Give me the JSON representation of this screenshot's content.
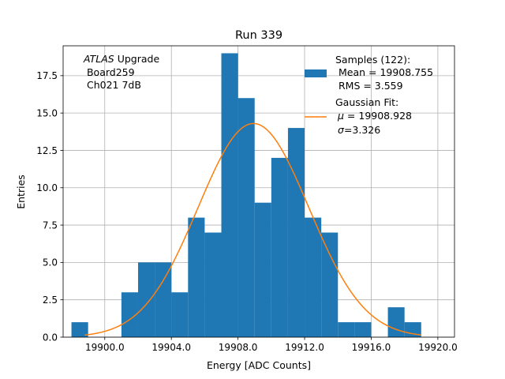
{
  "chart_data": {
    "type": "histogram",
    "title": "Run 339",
    "xlabel": "Energy [ADC Counts]",
    "ylabel": "Entries",
    "xlim": [
      19897.5,
      19921.0
    ],
    "ylim": [
      0,
      19.5
    ],
    "xticks": [
      19900.0,
      19904.0,
      19908.0,
      19912.0,
      19916.0,
      19920.0
    ],
    "xtick_labels": [
      "19900.0",
      "19904.0",
      "19908.0",
      "19912.0",
      "19916.0",
      "19920.0"
    ],
    "yticks": [
      0,
      2.5,
      5,
      7.5,
      10,
      12.5,
      15,
      17.5
    ],
    "ytick_labels": [
      "0.0",
      "2.5",
      "5.0",
      "7.5",
      "10.0",
      "12.5",
      "15.0",
      "17.5"
    ],
    "grid": true,
    "bar_color": "#1f77b4",
    "fit_color": "#ff7f0e",
    "bin_width": 1.0,
    "bins": [
      {
        "x0": 19898,
        "count": 1
      },
      {
        "x0": 19899,
        "count": 0
      },
      {
        "x0": 19900,
        "count": 0
      },
      {
        "x0": 19901,
        "count": 3
      },
      {
        "x0": 19902,
        "count": 5
      },
      {
        "x0": 19903,
        "count": 5
      },
      {
        "x0": 19904,
        "count": 3
      },
      {
        "x0": 19905,
        "count": 8
      },
      {
        "x0": 19906,
        "count": 7
      },
      {
        "x0": 19907,
        "count": 19
      },
      {
        "x0": 19908,
        "count": 16
      },
      {
        "x0": 19909,
        "count": 9
      },
      {
        "x0": 19910,
        "count": 12
      },
      {
        "x0": 19911,
        "count": 14
      },
      {
        "x0": 19912,
        "count": 8
      },
      {
        "x0": 19913,
        "count": 7
      },
      {
        "x0": 19914,
        "count": 1
      },
      {
        "x0": 19915,
        "count": 1
      },
      {
        "x0": 19916,
        "count": 0
      },
      {
        "x0": 19917,
        "count": 2
      },
      {
        "x0": 19918,
        "count": 1
      }
    ],
    "fit": {
      "mu": 19908.928,
      "sigma": 3.326,
      "amplitude": 14.3,
      "x_range": [
        19898.8,
        19919.0
      ]
    },
    "info_box": {
      "line1_italic": "ATLAS",
      "line1_rest": " Upgrade",
      "line2": " Board259",
      "line3": " Ch021 7dB"
    },
    "legend": {
      "placement": "top-right",
      "samples_line1": "Samples (122):",
      "samples_line2": " Mean = 19908.755",
      "samples_line3": " RMS = 3.559",
      "fit_line1": "Gaussian Fit:",
      "fit_line2_symbol": "μ",
      "fit_line2_rest": " = 19908.928",
      "fit_line3_symbol": "σ",
      "fit_line3_rest": "=3.326"
    }
  }
}
